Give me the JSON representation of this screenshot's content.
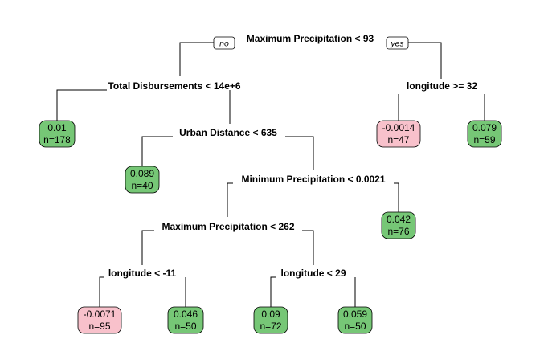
{
  "colors": {
    "positive_leaf": "#76c776",
    "negative_leaf": "#f8c1cb",
    "edge": "#000000",
    "background": "#ffffff"
  },
  "branch_labels": {
    "no": "no",
    "yes": "yes"
  },
  "splits": [
    {
      "id": "s1",
      "label": "Maximum Precipitation < 93"
    },
    {
      "id": "s2",
      "label": "Total Disbursements < 14e+6"
    },
    {
      "id": "s3",
      "label": "longitude >= 32"
    },
    {
      "id": "s4",
      "label": "Urban Distance < 635"
    },
    {
      "id": "s5",
      "label": "Minimum Precipitation < 0.0021"
    },
    {
      "id": "s6",
      "label": "Maximum Precipitation < 262"
    },
    {
      "id": "s7",
      "label": "longitude < -11"
    },
    {
      "id": "s8",
      "label": "longitude < 29"
    }
  ],
  "leaves": [
    {
      "id": "L1",
      "value": "0.01",
      "n": "n=178",
      "sign": "positive"
    },
    {
      "id": "L2",
      "value": "-0.0014",
      "n": "n=47",
      "sign": "negative"
    },
    {
      "id": "L3",
      "value": "0.079",
      "n": "n=59",
      "sign": "positive"
    },
    {
      "id": "L4",
      "value": "0.089",
      "n": "n=40",
      "sign": "positive"
    },
    {
      "id": "L5",
      "value": "0.042",
      "n": "n=76",
      "sign": "positive"
    },
    {
      "id": "L6",
      "value": "-0.0071",
      "n": "n=95",
      "sign": "negative"
    },
    {
      "id": "L7",
      "value": "0.046",
      "n": "n=50",
      "sign": "positive"
    },
    {
      "id": "L8",
      "value": "0.09",
      "n": "n=72",
      "sign": "positive"
    },
    {
      "id": "L9",
      "value": "0.059",
      "n": "n=50",
      "sign": "positive"
    }
  ]
}
